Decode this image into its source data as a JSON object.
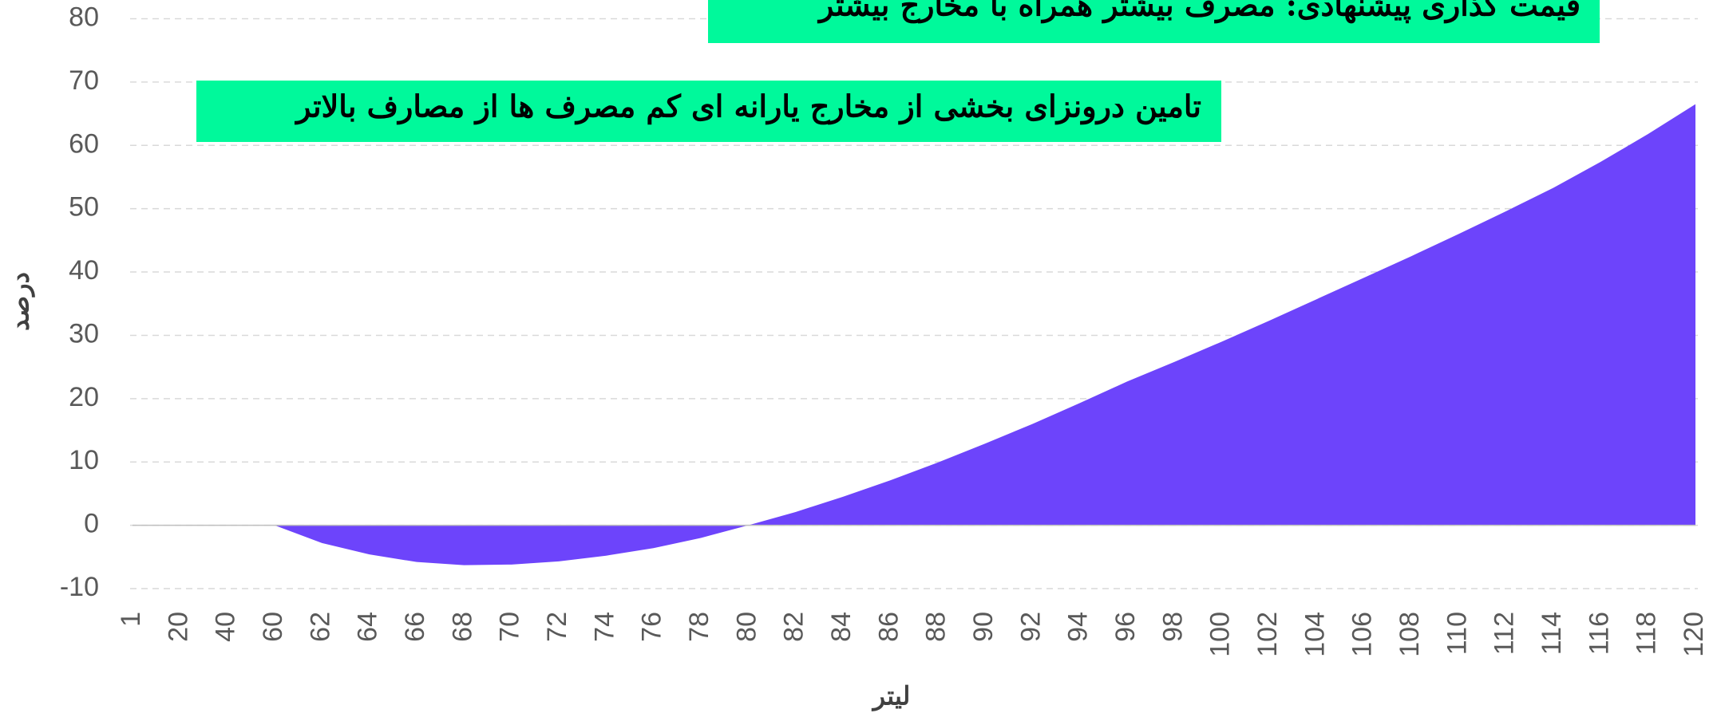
{
  "chart_data": {
    "type": "area",
    "title": "قیمت گذاری پیشنهادی: مصرف بیشتر همراه با مخارج بیشتر",
    "annotation": "تامین درونزای بخشی از مخارج یارانه ای کم مصرف ها از مصارف بالاتر",
    "x_label": "لیتر",
    "y_label": "درصد",
    "categories": [
      "1",
      "20",
      "40",
      "60",
      "62",
      "64",
      "66",
      "68",
      "70",
      "72",
      "74",
      "76",
      "78",
      "80",
      "82",
      "84",
      "86",
      "88",
      "90",
      "92",
      "94",
      "96",
      "98",
      "100",
      "102",
      "104",
      "106",
      "108",
      "110",
      "112",
      "114",
      "116",
      "118",
      "120"
    ],
    "values": [
      0,
      0,
      0,
      0,
      -2.8,
      -4.6,
      -5.8,
      -6.3,
      -6.2,
      -5.7,
      -4.8,
      -3.6,
      -2.0,
      0,
      2.1,
      4.5,
      7.1,
      9.9,
      12.9,
      16.0,
      19.3,
      22.7,
      25.8,
      29.0,
      32.3,
      35.7,
      39.1,
      42.5,
      46.0,
      49.6,
      53.3,
      57.4,
      61.8,
      66.5
    ],
    "color": "#6d44fb",
    "annotation_color": "#00f99b",
    "ylim": [
      -10,
      80
    ],
    "yticks": [
      -10,
      0,
      10,
      20,
      30,
      40,
      50,
      60,
      70,
      80
    ],
    "grid": true
  }
}
